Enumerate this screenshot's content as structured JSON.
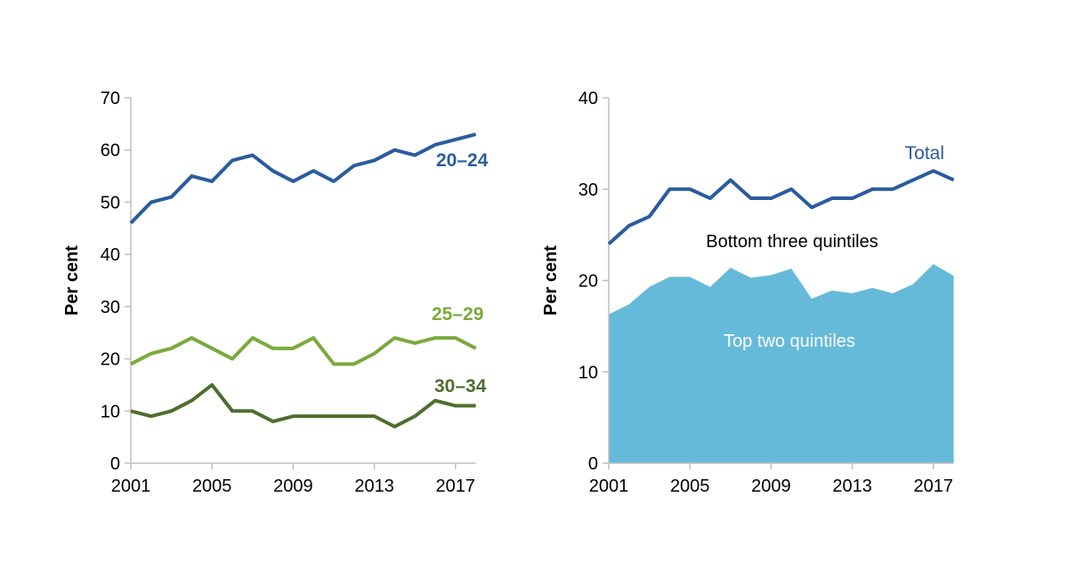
{
  "chart_data": [
    {
      "type": "line",
      "ylabel": "Per cent",
      "ylim": [
        0,
        70
      ],
      "yticks": [
        0,
        10,
        20,
        30,
        40,
        50,
        60,
        70
      ],
      "x": [
        2001,
        2002,
        2003,
        2004,
        2005,
        2006,
        2007,
        2008,
        2009,
        2010,
        2011,
        2012,
        2013,
        2014,
        2015,
        2016,
        2017,
        2018
      ],
      "xticks": [
        2001,
        2005,
        2009,
        2013,
        2017
      ],
      "series": [
        {
          "name": "20–24",
          "color": "#2B5C9E",
          "values": [
            46,
            50,
            51,
            55,
            54,
            58,
            59,
            56,
            54,
            56,
            54,
            57,
            58,
            60,
            59,
            61,
            62,
            63
          ]
        },
        {
          "name": "25–29",
          "color": "#7AAA3C",
          "values": [
            19,
            21,
            22,
            24,
            22,
            20,
            24,
            22,
            22,
            24,
            19,
            19,
            21,
            24,
            23,
            24,
            24,
            22
          ]
        },
        {
          "name": "30–34",
          "color": "#4E6E2E",
          "values": [
            10,
            9,
            10,
            12,
            15,
            10,
            10,
            8,
            9,
            9,
            9,
            9,
            9,
            7,
            9,
            12,
            11,
            11
          ]
        }
      ]
    },
    {
      "type": "area",
      "ylabel": "Per cent",
      "ylim": [
        0,
        40
      ],
      "yticks": [
        0,
        10,
        20,
        30,
        40
      ],
      "x": [
        2001,
        2002,
        2003,
        2004,
        2005,
        2006,
        2007,
        2008,
        2009,
        2010,
        2011,
        2012,
        2013,
        2014,
        2015,
        2016,
        2017,
        2018
      ],
      "xticks": [
        2001,
        2005,
        2009,
        2013,
        2017
      ],
      "series": [
        {
          "name": "Total",
          "kind": "line",
          "color": "#2B5C9E",
          "values": [
            24,
            26,
            27,
            30,
            30,
            29,
            31,
            29,
            29,
            30,
            28,
            29,
            29,
            30,
            30,
            31,
            32,
            31
          ]
        },
        {
          "name": "Top two quintiles",
          "kind": "area",
          "color": "#65BAD9",
          "values": [
            16.3,
            17.4,
            19.3,
            20.4,
            20.4,
            19.3,
            21.4,
            20.3,
            20.6,
            21.3,
            18.0,
            18.9,
            18.6,
            19.2,
            18.6,
            19.6,
            21.8,
            20.5
          ]
        }
      ],
      "annotations": [
        "Bottom three quintiles"
      ]
    }
  ]
}
